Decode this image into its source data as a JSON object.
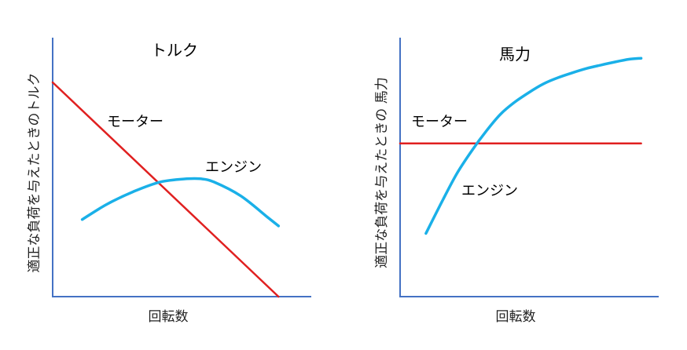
{
  "chart_data": [
    {
      "type": "line",
      "title": "トルク",
      "xlabel": "回転数",
      "ylabel": "適正な負荷を与えたときのトルク",
      "xlim": [
        0,
        100
      ],
      "ylim": [
        0,
        100
      ],
      "grid": false,
      "series": [
        {
          "name": "モーター",
          "color": "#e02020",
          "x": [
            0,
            84
          ],
          "y": [
            100,
            0
          ]
        },
        {
          "name": "エンジン",
          "color": "#1ab0e8",
          "x": [
            11,
            20,
            30,
            40,
            50,
            55,
            60,
            70,
            80,
            84
          ],
          "y": [
            36,
            43,
            49,
            53.5,
            55,
            55,
            53.5,
            47,
            37,
            33
          ]
        }
      ]
    },
    {
      "type": "line",
      "title": "馬力",
      "xlabel": "回転数",
      "ylabel": "適正な負荷を与えたときの 馬力",
      "xlim": [
        0,
        100
      ],
      "ylim": [
        0,
        100
      ],
      "grid": false,
      "series": [
        {
          "name": "モーター",
          "color": "#e02020",
          "x": [
            0,
            84
          ],
          "y": [
            63,
            63
          ]
        },
        {
          "name": "エンジン",
          "color": "#1ab0e8",
          "x": [
            9,
            15,
            20,
            25,
            30,
            35,
            40,
            45,
            50,
            55,
            60,
            65,
            70,
            75,
            80,
            84
          ],
          "y": [
            26,
            40,
            51,
            60,
            68,
            75,
            80,
            84,
            87.5,
            90,
            92,
            93.8,
            95.2,
            96.5,
            97.6,
            98
          ]
        }
      ]
    }
  ]
}
